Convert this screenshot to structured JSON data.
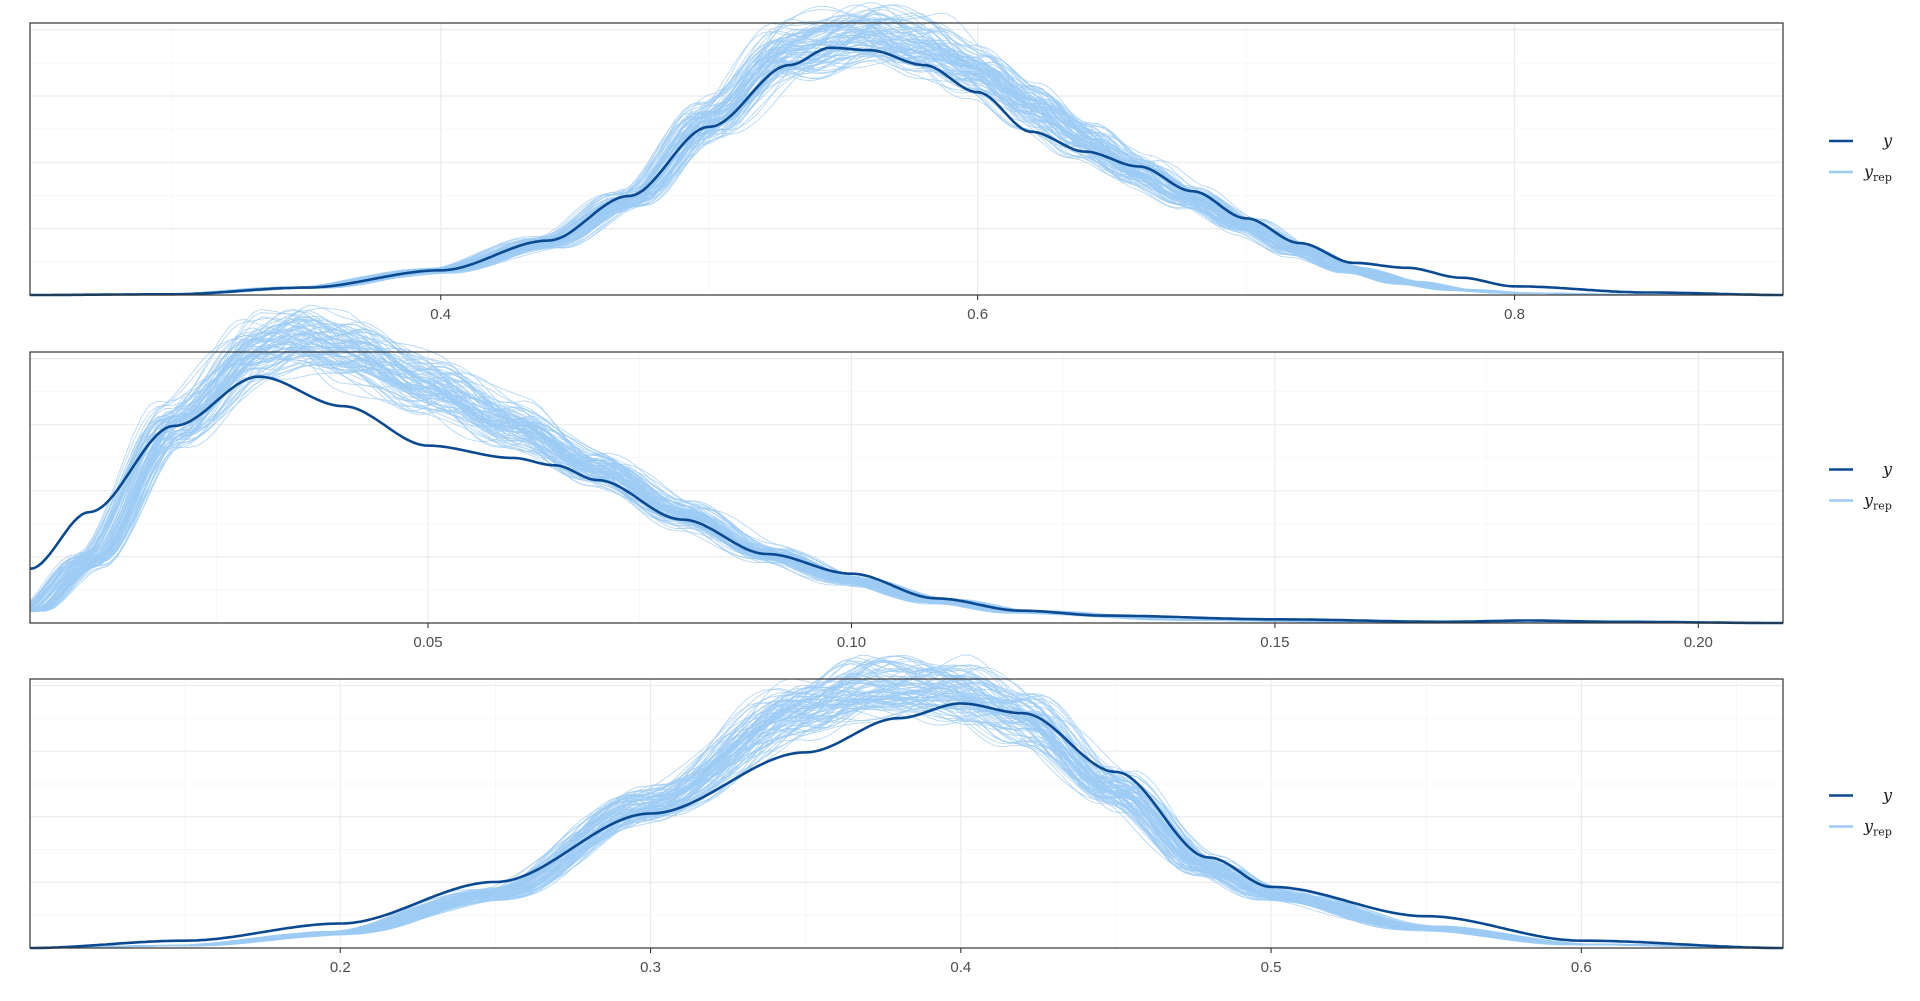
{
  "colors": {
    "y": "#0b4a91",
    "yrep": "#9ccbf4",
    "grid_major": "#ebebeb",
    "grid_minor": "#f5f5f5",
    "frame": "#333333"
  },
  "legend": {
    "y_label": "y",
    "yrep_label": "y",
    "yrep_sub": "rep"
  },
  "chart_data": [
    {
      "type": "line",
      "title": "",
      "xlabel": "",
      "ylabel": "",
      "xlim": [
        0.247,
        0.9
      ],
      "ylim": [
        0,
        1.1
      ],
      "ticks": [
        0.4,
        0.6,
        0.8
      ],
      "tick_labels": [
        "0.4",
        "0.6",
        "0.8"
      ],
      "grid": true,
      "legend_position": "right",
      "series": [
        {
          "name": "y",
          "x": [
            0.247,
            0.3,
            0.35,
            0.4,
            0.44,
            0.47,
            0.5,
            0.53,
            0.545,
            0.56,
            0.58,
            0.6,
            0.62,
            0.64,
            0.66,
            0.68,
            0.7,
            0.72,
            0.74,
            0.76,
            0.78,
            0.8,
            0.85,
            0.9
          ],
          "y": [
            0.0,
            0.003,
            0.03,
            0.1,
            0.22,
            0.4,
            0.68,
            0.93,
            1.0,
            0.99,
            0.93,
            0.82,
            0.66,
            0.58,
            0.52,
            0.42,
            0.31,
            0.21,
            0.13,
            0.11,
            0.07,
            0.035,
            0.01,
            0.0
          ]
        },
        {
          "name": "yrep",
          "x": [
            0.247,
            0.3,
            0.35,
            0.4,
            0.44,
            0.47,
            0.5,
            0.53,
            0.56,
            0.58,
            0.6,
            0.62,
            0.64,
            0.66,
            0.68,
            0.7,
            0.72,
            0.74,
            0.76,
            0.78,
            0.8,
            0.85,
            0.9
          ],
          "y": [
            0.0,
            0.003,
            0.03,
            0.1,
            0.21,
            0.38,
            0.7,
            0.98,
            1.05,
            1.0,
            0.9,
            0.76,
            0.62,
            0.5,
            0.39,
            0.28,
            0.18,
            0.1,
            0.05,
            0.02,
            0.008,
            0.001,
            0.0
          ]
        }
      ]
    },
    {
      "type": "line",
      "title": "",
      "xlabel": "",
      "ylabel": "",
      "xlim": [
        0.003,
        0.21
      ],
      "ylim": [
        0,
        1.1
      ],
      "ticks": [
        0.05,
        0.1,
        0.15,
        0.2
      ],
      "tick_labels": [
        "0.05",
        "0.10",
        "0.15",
        "0.20"
      ],
      "grid": true,
      "legend_position": "right",
      "series": [
        {
          "name": "y",
          "x": [
            0.003,
            0.01,
            0.02,
            0.03,
            0.04,
            0.05,
            0.06,
            0.065,
            0.07,
            0.08,
            0.09,
            0.1,
            0.11,
            0.12,
            0.13,
            0.15,
            0.17,
            0.18,
            0.19,
            0.21
          ],
          "y": [
            0.22,
            0.45,
            0.8,
            1.0,
            0.88,
            0.72,
            0.67,
            0.64,
            0.58,
            0.42,
            0.28,
            0.2,
            0.1,
            0.05,
            0.03,
            0.015,
            0.005,
            0.01,
            0.005,
            0.0
          ]
        },
        {
          "name": "yrep",
          "x": [
            0.003,
            0.01,
            0.02,
            0.03,
            0.035,
            0.04,
            0.05,
            0.06,
            0.07,
            0.08,
            0.09,
            0.1,
            0.11,
            0.12,
            0.14,
            0.16,
            0.18,
            0.21
          ],
          "y": [
            0.05,
            0.25,
            0.8,
            1.1,
            1.15,
            1.1,
            0.96,
            0.8,
            0.62,
            0.44,
            0.28,
            0.17,
            0.09,
            0.045,
            0.012,
            0.004,
            0.001,
            0.0
          ]
        }
      ]
    },
    {
      "type": "line",
      "title": "",
      "xlabel": "",
      "ylabel": "",
      "xlim": [
        0.1,
        0.665
      ],
      "ylim": [
        0,
        1.1
      ],
      "ticks": [
        0.2,
        0.3,
        0.4,
        0.5,
        0.6
      ],
      "tick_labels": [
        "0.2",
        "0.3",
        "0.4",
        "0.5",
        "0.6"
      ],
      "grid": true,
      "legend_position": "right",
      "series": [
        {
          "name": "y",
          "x": [
            0.1,
            0.15,
            0.2,
            0.25,
            0.3,
            0.35,
            0.38,
            0.4,
            0.42,
            0.45,
            0.48,
            0.5,
            0.55,
            0.6,
            0.665
          ],
          "y": [
            0.0,
            0.03,
            0.1,
            0.27,
            0.55,
            0.8,
            0.94,
            1.0,
            0.96,
            0.72,
            0.37,
            0.25,
            0.13,
            0.03,
            0.0
          ]
        },
        {
          "name": "yrep",
          "x": [
            0.1,
            0.15,
            0.2,
            0.25,
            0.3,
            0.35,
            0.37,
            0.4,
            0.42,
            0.45,
            0.48,
            0.5,
            0.55,
            0.6,
            0.665
          ],
          "y": [
            0.0,
            0.01,
            0.06,
            0.22,
            0.58,
            0.98,
            1.06,
            1.04,
            0.95,
            0.65,
            0.33,
            0.22,
            0.08,
            0.015,
            0.0
          ]
        }
      ]
    }
  ]
}
